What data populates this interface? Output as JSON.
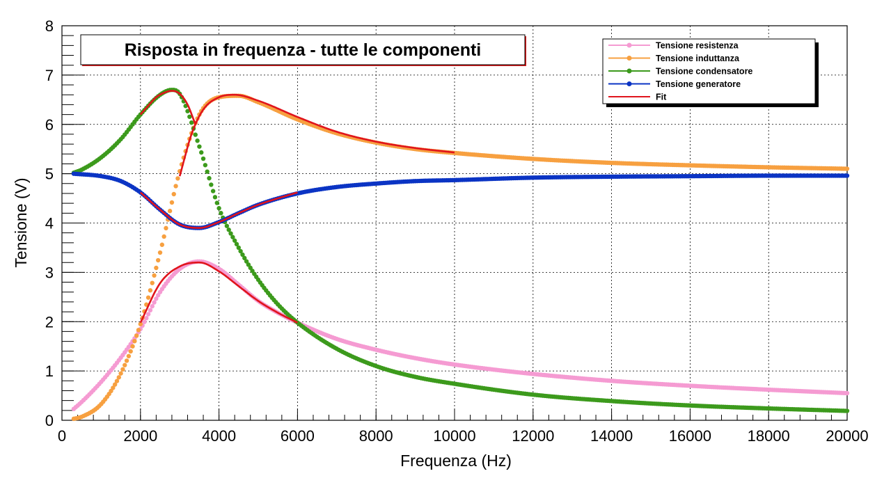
{
  "chart_data": {
    "type": "line",
    "title": "Risposta in frequenza - tutte le componenti",
    "xlabel": "Frequenza (Hz)",
    "ylabel": "Tensione (V)",
    "xlim": [
      0,
      20000
    ],
    "ylim": [
      0,
      8
    ],
    "x_ticks": [
      "0",
      "2000",
      "4000",
      "6000",
      "8000",
      "10000",
      "12000",
      "14000",
      "16000",
      "18000",
      "20000"
    ],
    "y_ticks": [
      "0",
      "1",
      "2",
      "3",
      "4",
      "5",
      "6",
      "7",
      "8"
    ],
    "grid": true,
    "legend_position": "top-right",
    "series": [
      {
        "name": "Tensione resistenza",
        "color": "#f59bd2",
        "style": "markers",
        "x": [
          300,
          500,
          1000,
          1500,
          2000,
          2500,
          3000,
          3500,
          4000,
          4500,
          5000,
          5500,
          6000,
          7000,
          8000,
          9000,
          10000,
          12000,
          14000,
          16000,
          18000,
          20000
        ],
        "y": [
          0.23,
          0.37,
          0.78,
          1.27,
          1.85,
          2.6,
          3.07,
          3.22,
          3.07,
          2.75,
          2.42,
          2.18,
          1.98,
          1.65,
          1.43,
          1.26,
          1.13,
          0.94,
          0.8,
          0.7,
          0.62,
          0.55
        ]
      },
      {
        "name": "Tensione induttanza",
        "color": "#f7a040",
        "style": "markers",
        "x": [
          300,
          500,
          1000,
          1500,
          2000,
          2500,
          3000,
          3500,
          4000,
          4500,
          5000,
          6000,
          7000,
          8000,
          9000,
          10000,
          12000,
          14000,
          16000,
          18000,
          20000
        ],
        "y": [
          0.03,
          0.07,
          0.33,
          0.95,
          1.95,
          3.4,
          5.05,
          6.2,
          6.55,
          6.58,
          6.45,
          6.1,
          5.82,
          5.63,
          5.5,
          5.42,
          5.3,
          5.22,
          5.17,
          5.13,
          5.1
        ]
      },
      {
        "name": "Tensione condensatore",
        "color": "#3c9a1c",
        "style": "markers",
        "x": [
          300,
          500,
          1000,
          1500,
          2000,
          2500,
          2800,
          3000,
          3500,
          4000,
          4500,
          5000,
          5500,
          6000,
          7000,
          8000,
          9000,
          10000,
          12000,
          14000,
          16000,
          18000,
          20000
        ],
        "y": [
          5.02,
          5.08,
          5.33,
          5.7,
          6.2,
          6.6,
          6.7,
          6.62,
          5.55,
          4.3,
          3.5,
          2.85,
          2.35,
          1.98,
          1.45,
          1.1,
          0.88,
          0.74,
          0.52,
          0.39,
          0.3,
          0.24,
          0.19
        ]
      },
      {
        "name": "Tensione generatore",
        "color": "#0b34c4",
        "style": "markers",
        "x": [
          300,
          1000,
          1500,
          2000,
          2500,
          3000,
          3500,
          4000,
          4500,
          5000,
          6000,
          7000,
          8000,
          9000,
          10000,
          12000,
          14000,
          16000,
          18000,
          20000
        ],
        "y": [
          5.0,
          4.95,
          4.85,
          4.62,
          4.27,
          3.97,
          3.9,
          4.02,
          4.2,
          4.37,
          4.6,
          4.73,
          4.8,
          4.85,
          4.87,
          4.92,
          4.94,
          4.95,
          4.96,
          4.96
        ]
      },
      {
        "name": "Fit",
        "color": "#e0141c",
        "style": "line",
        "segments": [
          {
            "x": [
              2000,
              2500,
              3000,
              3500,
              4000,
              4500,
              5000,
              5500,
              6000
            ],
            "y": [
              1.98,
              2.78,
              3.12,
              3.2,
              3.02,
              2.72,
              2.42,
              2.18,
              1.98
            ]
          },
          {
            "x": [
              2000,
              2200,
              2400,
              2600,
              2800,
              3000,
              3200,
              3400
            ],
            "y": [
              6.2,
              6.38,
              6.55,
              6.64,
              6.68,
              6.62,
              6.4,
              6.0
            ]
          },
          {
            "x": [
              3000,
              3300,
              3600,
              4000,
              4400,
              5000,
              6000,
              7000,
              8000,
              9000,
              10000
            ],
            "y": [
              4.95,
              5.8,
              6.3,
              6.55,
              6.6,
              6.48,
              6.15,
              5.85,
              5.65,
              5.52,
              5.43
            ]
          },
          {
            "x": [
              2000,
              2500,
              3000,
              3500,
              4000,
              4500,
              5000,
              5500,
              6000
            ],
            "y": [
              4.62,
              4.27,
              3.97,
              3.9,
              4.02,
              4.2,
              4.37,
              4.5,
              4.62
            ]
          }
        ]
      }
    ]
  }
}
